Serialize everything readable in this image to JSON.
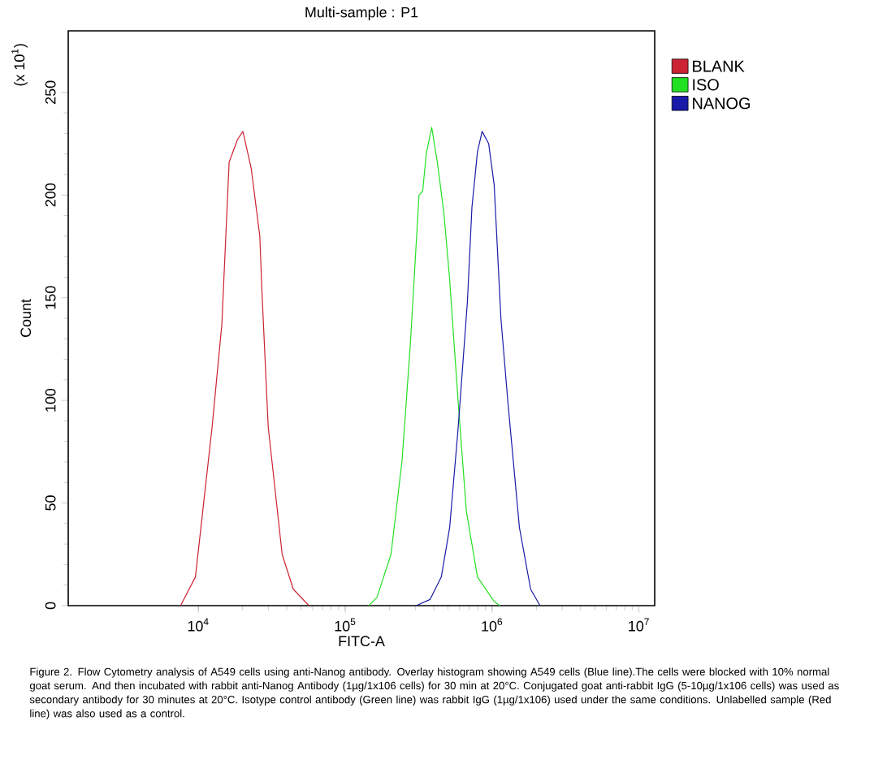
{
  "chart_data": {
    "type": "line",
    "title": "Multi-sample : P1",
    "xlabel": "FITC-A",
    "ylabel": "Count",
    "annotations": [
      "(x 10$^{1}$)",
      "Figure 2. Flow Cytometry analysis of A549 cells using anti-Nanog antibody.  Overlay histogram showing A549 cells (Blue line).The cells were blocked with 10% normal goat serum. And then incubated with rabbit anti-Nanog Antibody (1µg/1x106 cells) for 30 min at 20°C. Conjugated goat anti-rabbit IgG (5-10µg/1x106 cells) was used as secondary antibody for 30 minutes at 20°C. Isotype control antibody (Green line) was rabbit IgG (1µg/1x106) used under the same conditions. Unlabelled sample (Red line) was also used as a control."
    ],
    "log": "x",
    "legend": "right",
    "xlim": [
      1300,
      12800000
    ],
    "ylim": [
      0,
      280
    ],
    "xticks": [
      {
        "value": 10000,
        "label": "10$^{4}$"
      },
      {
        "value": 100000,
        "label": "10$^{5}$"
      },
      {
        "value": 1000000,
        "label": "10$^{6}$"
      },
      {
        "value": 10000000,
        "label": "10$^{7}$"
      }
    ],
    "yticks": [
      0,
      50,
      100,
      150,
      200,
      250
    ],
    "series": [
      {
        "name": "BLANK",
        "color": "#cc2233",
        "x": [
          7570,
          9550,
          12400,
          14450,
          16200,
          18450,
          20100,
          22900,
          26200,
          27100,
          29900,
          37200,
          44300,
          56600
        ],
        "values": [
          0,
          14,
          87,
          137,
          216,
          227,
          231,
          213,
          180,
          153,
          87,
          25,
          8,
          0
        ]
      },
      {
        "name": "ISO",
        "color": "#22e022",
        "x": [
          144500,
          164400,
          205000,
          244000,
          278000,
          318000,
          337000,
          356000,
          388000,
          424000,
          470000,
          514000,
          585000,
          668000,
          795000,
          1033000,
          1130000
        ],
        "values": [
          0,
          4,
          25,
          71,
          128,
          200,
          202,
          220,
          233,
          216,
          191,
          159,
          101,
          46,
          14,
          2,
          0
        ]
      },
      {
        "name": "NANOG",
        "color": "#1a1aa8",
        "x": [
          304000,
          378000,
          451000,
          514000,
          585000,
          679000,
          729000,
          795000,
          855000,
          948000,
          1033000,
          1148000,
          1285000,
          1535000,
          1830000,
          2120000
        ],
        "values": [
          0,
          3,
          14,
          38,
          85,
          148,
          194,
          221,
          231,
          225,
          205,
          140,
          98,
          38,
          8,
          0
        ]
      }
    ]
  }
}
